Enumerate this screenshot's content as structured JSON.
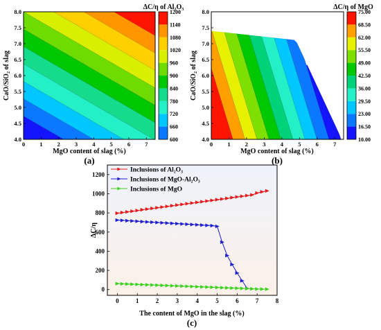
{
  "chart_data": [
    {
      "type": "heatmap",
      "panel_label": "(a)",
      "title": "ΔC/η of Al₂O₃",
      "xlabel": "MgO content of slag (%)",
      "ylabel": "CaO/SiO₂ of slag",
      "xlim": [
        0,
        7.5
      ],
      "ylim": [
        4.0,
        8.0
      ],
      "x_ticks": [
        "0",
        "1",
        "2",
        "3",
        "4",
        "5",
        "6",
        "7"
      ],
      "y_ticks": [
        "4.0",
        "4.5",
        "5.0",
        "5.5",
        "6.0",
        "6.5",
        "7.0",
        "7.5",
        "8.0"
      ],
      "colorbar": [
        "600",
        "660",
        "720",
        "780",
        "840",
        "900",
        "960",
        "1020",
        "1080",
        "1140",
        "1200"
      ],
      "level_colors": [
        "#1414ff",
        "#0a78ff",
        "#00c8ff",
        "#24f0c8",
        "#14dc8c",
        "#00c800",
        "#6edc00",
        "#d8f000",
        "#ffd000",
        "#ff9600",
        "#ff1400"
      ]
    },
    {
      "type": "heatmap",
      "panel_label": "(b)",
      "title": "ΔC/η of MgO",
      "xlabel": "MgO content of slag (%)",
      "ylabel": "CaO/SiO₂ of slag",
      "xlim": [
        0,
        7.5
      ],
      "ylim": [
        4.0,
        8.0
      ],
      "x_ticks": [
        "0",
        "1",
        "2",
        "3",
        "4",
        "5",
        "6",
        "7"
      ],
      "y_ticks": [
        "4.0",
        "4.5",
        "5.0",
        "5.5",
        "6.0",
        "6.5",
        "7.0",
        "7.5",
        "8.0"
      ],
      "colorbar": [
        "10.00",
        "16.50",
        "23.00",
        "29.50",
        "36.00",
        "42.50",
        "49.00",
        "55.50",
        "62.00",
        "68.50",
        "75.00"
      ],
      "level_colors": [
        "#ffffff",
        "#1414ff",
        "#0a78ff",
        "#00c8ff",
        "#24f0c8",
        "#00d27a",
        "#00c800",
        "#7ee000",
        "#e6f000",
        "#ffa000",
        "#ff1400"
      ]
    },
    {
      "type": "line",
      "panel_label": "(c)",
      "xlabel": "The content of MgO in the slag (%)",
      "ylabel": "ΔC/η",
      "xlim": [
        -0.5,
        8
      ],
      "ylim": [
        -60,
        1300
      ],
      "x_ticks": [
        "0",
        "1",
        "2",
        "3",
        "4",
        "5",
        "6",
        "7",
        "8"
      ],
      "y_ticks": [
        "0",
        "200",
        "400",
        "600",
        "800",
        "1000",
        "1200"
      ],
      "series": [
        {
          "name": "Inclusions of Al₂O₃",
          "color": "#e41a1c",
          "x": [
            0,
            0.25,
            0.5,
            0.75,
            1,
            1.25,
            1.5,
            1.75,
            2,
            2.25,
            2.5,
            2.75,
            3,
            3.25,
            3.5,
            3.75,
            4,
            4.25,
            4.5,
            4.75,
            5,
            5.25,
            5.5,
            5.75,
            6,
            6.25,
            6.5,
            6.75,
            7,
            7.25,
            7.5
          ],
          "y": [
            797,
            804,
            811,
            818,
            825,
            833,
            840,
            847,
            854,
            861,
            868,
            875,
            882,
            889,
            896,
            903,
            910,
            917,
            924,
            931,
            938,
            945,
            952,
            960,
            967,
            974,
            981,
            988,
            1008,
            1020,
            1030
          ]
        },
        {
          "name": "Inclusions of MgO-Al₂O₃",
          "color": "#1f1fcf",
          "x": [
            0,
            0.25,
            0.5,
            0.75,
            1,
            1.25,
            1.5,
            1.75,
            2,
            2.25,
            2.5,
            2.75,
            3,
            3.25,
            3.5,
            3.75,
            4,
            4.25,
            4.5,
            4.75,
            5,
            5.25,
            5.5,
            5.75,
            6,
            6.25,
            6.5
          ],
          "y": [
            725,
            722,
            719,
            716,
            713,
            709,
            706,
            703,
            700,
            697,
            694,
            691,
            688,
            685,
            682,
            679,
            676,
            673,
            670,
            667,
            660,
            495,
            355,
            262,
            173,
            92,
            12
          ]
        },
        {
          "name": "Inclusions of MgO",
          "color": "#3ad21e",
          "x": [
            0,
            0.25,
            0.5,
            0.75,
            1,
            1.25,
            1.5,
            1.75,
            2,
            2.25,
            2.5,
            2.75,
            3,
            3.25,
            3.5,
            3.75,
            4,
            4.25,
            4.5,
            4.75,
            5,
            5.25,
            5.5,
            5.75,
            6,
            6.25,
            6.5,
            6.75,
            7,
            7.25,
            7.5
          ],
          "y": [
            62,
            60,
            58,
            56,
            54,
            52,
            50,
            48,
            46,
            44,
            42,
            40,
            38,
            36,
            34,
            32,
            30,
            28,
            26,
            24,
            22,
            20,
            18,
            16,
            14,
            12,
            10,
            8,
            6,
            5,
            4
          ]
        }
      ]
    }
  ]
}
